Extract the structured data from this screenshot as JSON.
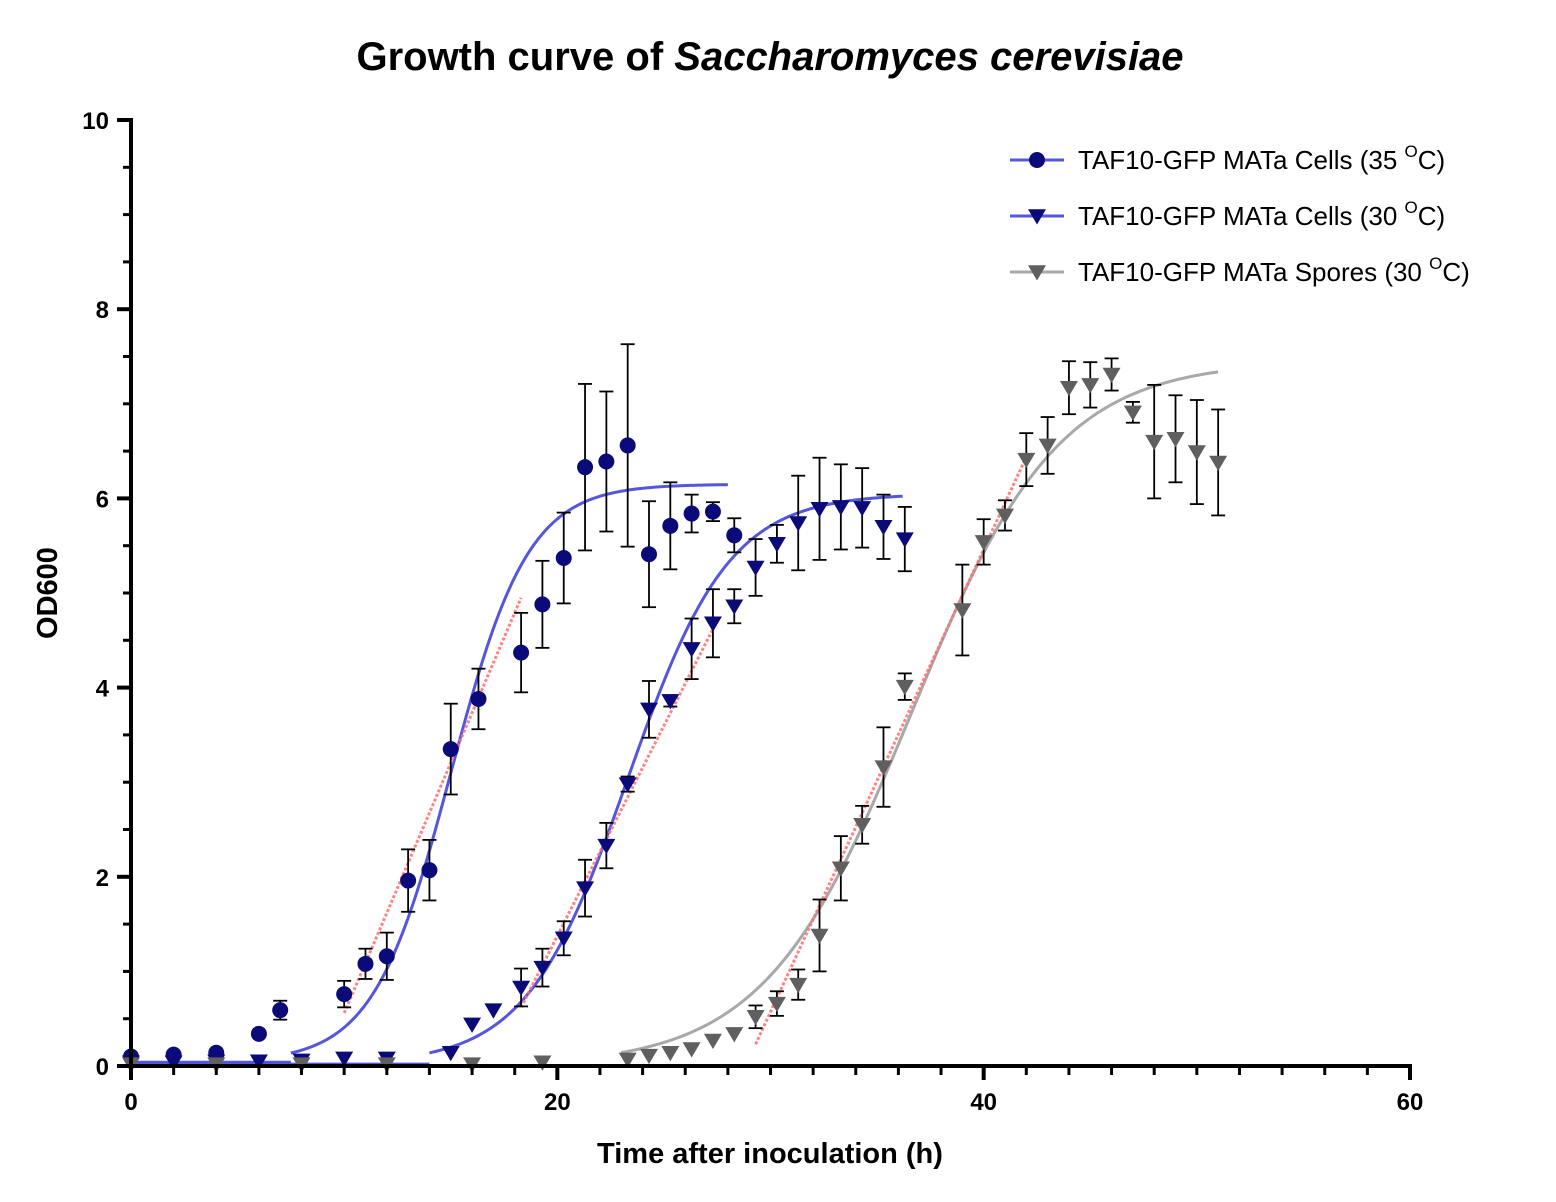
{
  "chart_data": {
    "type": "scatter",
    "title": "Growth curve of ",
    "title_italic": "Saccharomyces cerevisiae",
    "xlabel": "Time after inoculation (h)",
    "ylabel": "OD600",
    "xlim": [
      0,
      60
    ],
    "ylim": [
      0,
      10
    ],
    "x_ticks": [
      "0",
      "20",
      "40",
      "60"
    ],
    "y_ticks": [
      "0",
      "2",
      "4",
      "6",
      "8",
      "10"
    ],
    "grid": false,
    "legend_position": "top-right",
    "series": [
      {
        "name": "TAF10-GFP MATa Cells (35 ",
        "name_sup": "O",
        "name_suffix": "C)",
        "marker": "circle",
        "marker_color": "#0a0a78",
        "line_color": "#5555dd",
        "points": [
          {
            "x": 0,
            "y": 0.1,
            "err": 0
          },
          {
            "x": 2,
            "y": 0.12,
            "err": 0
          },
          {
            "x": 4,
            "y": 0.14,
            "err": 0
          },
          {
            "x": 6,
            "y": 0.34,
            "err": 0
          },
          {
            "x": 7,
            "y": 0.59,
            "err": 0.1
          },
          {
            "x": 10,
            "y": 0.76,
            "err": 0.14
          },
          {
            "x": 11,
            "y": 1.08,
            "err": 0.16
          },
          {
            "x": 12,
            "y": 1.16,
            "err": 0.25
          },
          {
            "x": 13,
            "y": 1.96,
            "err": 0.33
          },
          {
            "x": 14,
            "y": 2.07,
            "err": 0.32
          },
          {
            "x": 15,
            "y": 3.35,
            "err": 0.48
          },
          {
            "x": 16.3,
            "y": 3.88,
            "err": 0.32
          },
          {
            "x": 18.3,
            "y": 4.37,
            "err": 0.42
          },
          {
            "x": 19.3,
            "y": 4.88,
            "err": 0.46
          },
          {
            "x": 20.3,
            "y": 5.37,
            "err": 0.48
          },
          {
            "x": 21.3,
            "y": 6.33,
            "err": 0.88
          },
          {
            "x": 22.3,
            "y": 6.39,
            "err": 0.74
          },
          {
            "x": 23.3,
            "y": 6.56,
            "err": 1.07
          },
          {
            "x": 24.3,
            "y": 5.41,
            "err": 0.56
          },
          {
            "x": 25.3,
            "y": 5.71,
            "err": 0.46
          },
          {
            "x": 26.3,
            "y": 5.84,
            "err": 0.2
          },
          {
            "x": 27.3,
            "y": 5.86,
            "err": 0.1
          },
          {
            "x": 28.3,
            "y": 5.61,
            "err": 0.18
          }
        ],
        "fit": {
          "top": 6.15,
          "bottom": 0.04,
          "midpoint": 15.0,
          "slope": 0.55,
          "x_start": 7.5,
          "x_end": 28.0
        },
        "linear": {
          "x1": 10,
          "y1": 0.56,
          "x2": 18.3,
          "y2": 4.95
        }
      },
      {
        "name": "TAF10-GFP MATa Cells (30 ",
        "name_sup": "O",
        "name_suffix": "C)",
        "marker": "triangle-down",
        "marker_color": "#0a0a78",
        "line_color": "#5555dd",
        "points": [
          {
            "x": 0,
            "y": 0.04,
            "err": 0
          },
          {
            "x": 2,
            "y": 0.04,
            "err": 0
          },
          {
            "x": 4,
            "y": 0.05,
            "err": 0
          },
          {
            "x": 6,
            "y": 0.05,
            "err": 0
          },
          {
            "x": 8,
            "y": 0.06,
            "err": 0
          },
          {
            "x": 10,
            "y": 0.08,
            "err": 0
          },
          {
            "x": 12,
            "y": 0.08,
            "err": 0
          },
          {
            "x": 15,
            "y": 0.14,
            "err": 0
          },
          {
            "x": 16,
            "y": 0.44,
            "err": 0
          },
          {
            "x": 17,
            "y": 0.59,
            "err": 0
          },
          {
            "x": 18.3,
            "y": 0.83,
            "err": 0.2
          },
          {
            "x": 19.3,
            "y": 1.04,
            "err": 0.2
          },
          {
            "x": 20.3,
            "y": 1.35,
            "err": 0.18
          },
          {
            "x": 21.3,
            "y": 1.88,
            "err": 0.3
          },
          {
            "x": 22.3,
            "y": 2.33,
            "err": 0.24
          },
          {
            "x": 23.3,
            "y": 2.98,
            "err": 0.08
          },
          {
            "x": 24.3,
            "y": 3.77,
            "err": 0.3
          },
          {
            "x": 25.3,
            "y": 3.86,
            "err": 0.06
          },
          {
            "x": 26.3,
            "y": 4.41,
            "err": 0.32
          },
          {
            "x": 27.3,
            "y": 4.68,
            "err": 0.36
          },
          {
            "x": 28.3,
            "y": 4.86,
            "err": 0.18
          },
          {
            "x": 29.3,
            "y": 5.27,
            "err": 0.3
          },
          {
            "x": 30.3,
            "y": 5.52,
            "err": 0.2
          },
          {
            "x": 31.3,
            "y": 5.74,
            "err": 0.5
          },
          {
            "x": 32.3,
            "y": 5.89,
            "err": 0.54
          },
          {
            "x": 33.3,
            "y": 5.91,
            "err": 0.45
          },
          {
            "x": 34.3,
            "y": 5.9,
            "err": 0.42
          },
          {
            "x": 35.3,
            "y": 5.7,
            "err": 0.34
          },
          {
            "x": 36.3,
            "y": 5.57,
            "err": 0.34
          }
        ],
        "fit": {
          "top": 6.05,
          "bottom": 0.02,
          "midpoint": 23.3,
          "slope": 0.42,
          "x_start": 14.0,
          "x_end": 36.2
        },
        "linear": {
          "x1": 18.3,
          "y1": 0.62,
          "x2": 27.3,
          "y2": 4.62
        }
      },
      {
        "name": "TAF10-GFP MATa Spores (30 ",
        "name_sup": "O",
        "name_suffix": "C)",
        "marker": "triangle-down",
        "marker_color": "#5f5f5f",
        "line_color": "#a8a8a8",
        "points": [
          {
            "x": 0,
            "y": 0.02,
            "err": 0
          },
          {
            "x": 4,
            "y": 0.02,
            "err": 0
          },
          {
            "x": 8,
            "y": 0.02,
            "err": 0
          },
          {
            "x": 12,
            "y": 0.02,
            "err": 0
          },
          {
            "x": 16,
            "y": 0.02,
            "err": 0
          },
          {
            "x": 19.3,
            "y": 0.04,
            "err": 0
          },
          {
            "x": 23.3,
            "y": 0.07,
            "err": 0
          },
          {
            "x": 24.3,
            "y": 0.11,
            "err": 0
          },
          {
            "x": 25.3,
            "y": 0.14,
            "err": 0
          },
          {
            "x": 26.3,
            "y": 0.18,
            "err": 0
          },
          {
            "x": 27.3,
            "y": 0.27,
            "err": 0
          },
          {
            "x": 28.3,
            "y": 0.34,
            "err": 0
          },
          {
            "x": 29.3,
            "y": 0.52,
            "err": 0.12
          },
          {
            "x": 30.3,
            "y": 0.66,
            "err": 0.13
          },
          {
            "x": 31.3,
            "y": 0.86,
            "err": 0.16
          },
          {
            "x": 32.3,
            "y": 1.38,
            "err": 0.38
          },
          {
            "x": 33.3,
            "y": 2.09,
            "err": 0.34
          },
          {
            "x": 34.3,
            "y": 2.55,
            "err": 0.2
          },
          {
            "x": 35.3,
            "y": 3.16,
            "err": 0.42
          },
          {
            "x": 36.3,
            "y": 4.01,
            "err": 0.14
          },
          {
            "x": 39.0,
            "y": 4.82,
            "err": 0.48
          },
          {
            "x": 40.0,
            "y": 5.54,
            "err": 0.24
          },
          {
            "x": 41.0,
            "y": 5.82,
            "err": 0.16
          },
          {
            "x": 42.0,
            "y": 6.41,
            "err": 0.28
          },
          {
            "x": 43.0,
            "y": 6.56,
            "err": 0.3
          },
          {
            "x": 44.0,
            "y": 7.17,
            "err": 0.28
          },
          {
            "x": 45.0,
            "y": 7.2,
            "err": 0.24
          },
          {
            "x": 46.0,
            "y": 7.31,
            "err": 0.17
          },
          {
            "x": 47.0,
            "y": 6.91,
            "err": 0.11
          },
          {
            "x": 48.0,
            "y": 6.6,
            "err": 0.6
          },
          {
            "x": 49.0,
            "y": 6.63,
            "err": 0.46
          },
          {
            "x": 50.0,
            "y": 6.49,
            "err": 0.55
          },
          {
            "x": 51.0,
            "y": 6.38,
            "err": 0.56
          }
        ],
        "fit": {
          "top": 7.45,
          "bottom": 0.0,
          "midpoint": 36.6,
          "slope": 0.29,
          "x_start": 23.0,
          "x_end": 51.0
        },
        "linear": {
          "x1": 29.3,
          "y1": 0.23,
          "x2": 42.0,
          "y2": 6.44
        }
      }
    ],
    "linear_fit_color": "#ff7070"
  }
}
